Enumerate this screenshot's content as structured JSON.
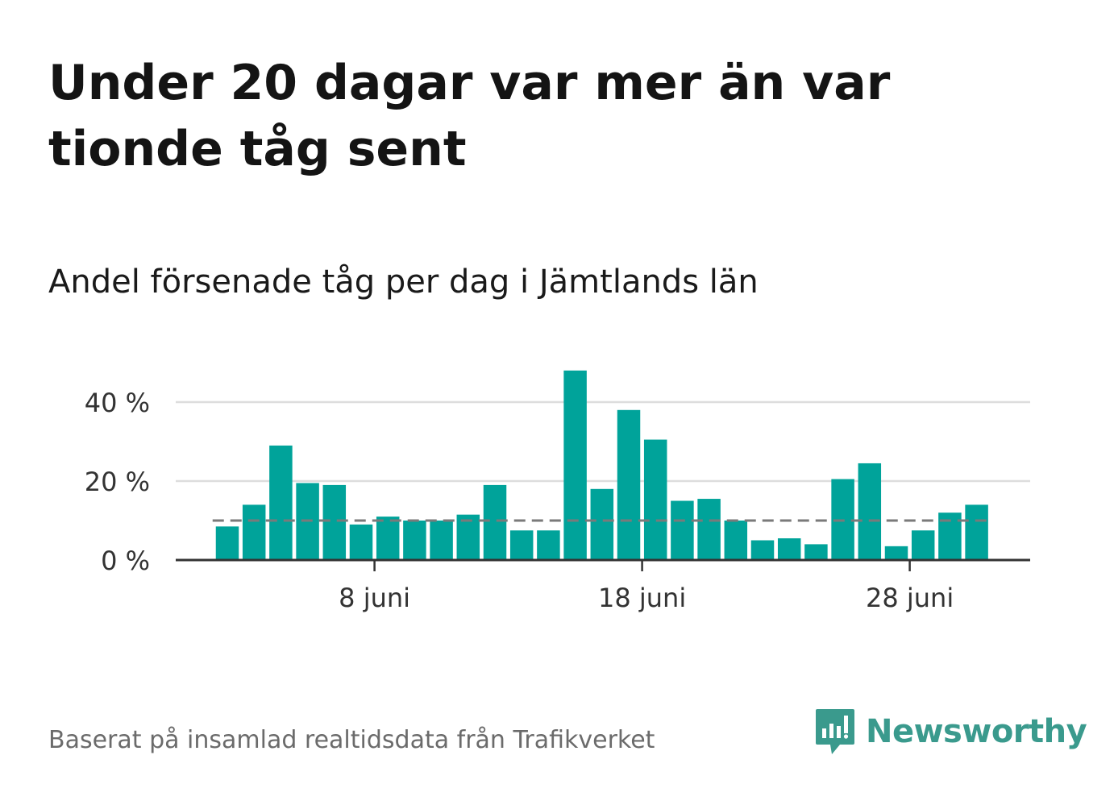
{
  "title": "Under 20 dagar var mer än var tionde tåg sent",
  "subtitle": "Andel försenade tåg per dag i Jämtlands län",
  "footer": {
    "source": "Baserat på insamlad realtidsdata från Trafikverket",
    "logo_text": "Newsworthy",
    "logo_icon": "bar-chart-speech-bubble-icon"
  },
  "colors": {
    "bar": "#00a39a",
    "reference_line": "#7a7a7a",
    "grid": "#dddddd",
    "axis": "#333333",
    "logo": "#3a9a8d"
  },
  "chart_data": {
    "type": "bar",
    "x": [
      "2 juni",
      "3 juni",
      "4 juni",
      "5 juni",
      "6 juni",
      "7 juni",
      "8 juni",
      "9 juni",
      "10 juni",
      "11 juni",
      "12 juni",
      "13 juni",
      "14 juni",
      "15 juni",
      "16 juni",
      "17 juni",
      "18 juni",
      "19 juni",
      "20 juni",
      "21 juni",
      "22 juni",
      "23 juni",
      "24 juni",
      "25 juni",
      "26 juni",
      "27 juni",
      "28 juni",
      "29 juni",
      "30 juni"
    ],
    "values": [
      8.5,
      14,
      29,
      19.5,
      19,
      9,
      11,
      10,
      10,
      11.5,
      19,
      7.5,
      7.5,
      48,
      18,
      38,
      30.5,
      15,
      15.5,
      10,
      5,
      5.5,
      4,
      20.5,
      24.5,
      3.5,
      7.5,
      12,
      14
    ],
    "reference_line": 10,
    "y_ticks": [
      0,
      20,
      40
    ],
    "y_tick_labels": [
      "0 %",
      "20 %",
      "40 %"
    ],
    "x_ticks": [
      "8 juni",
      "18 juni",
      "28 juni"
    ],
    "ylim": [
      0,
      50
    ],
    "grid": true,
    "xlabel": "",
    "ylabel": ""
  }
}
